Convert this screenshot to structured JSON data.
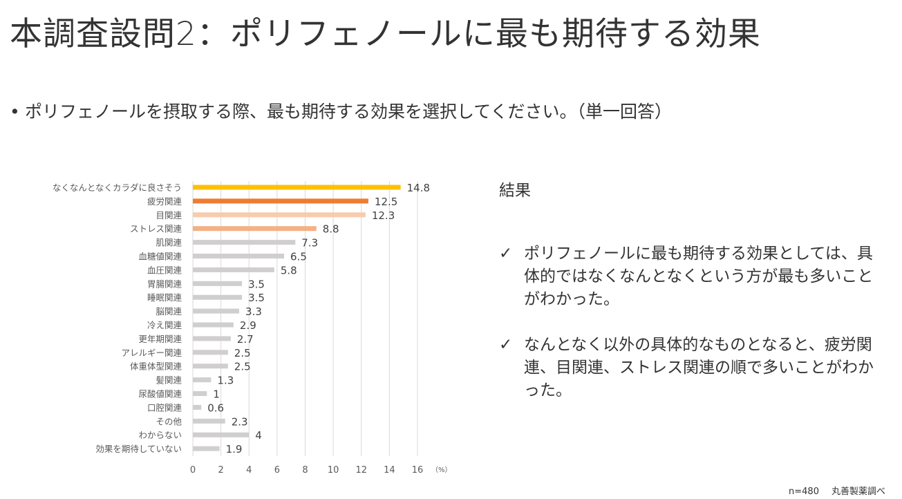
{
  "title": "本調査設問2：ポリフェノールに最も期待する効果",
  "question": "ポリフェノールを摂取する際、最も期待する効果を選択してください。（単一回答）",
  "results": {
    "heading": "結果",
    "check_icon": "check-icon",
    "items": [
      "ポリフェノールに最も期待する効果としては、具体的ではなくなんとなくという方が最も多いことがわかった。",
      "なんとなく以外の具体的なものとなると、疲労関連、目関連、ストレス関連の順で多いことがわかった。"
    ]
  },
  "footer": {
    "sample": "n=480",
    "source": "丸善製薬調べ"
  },
  "chart_data": {
    "type": "bar",
    "orientation": "horizontal",
    "categories": [
      "なくなんとなくカラダに良さそう",
      "疲労関連",
      "目関連",
      "ストレス関連",
      "肌関連",
      "血糖値関連",
      "血圧関連",
      "胃腸関連",
      "睡眠関連",
      "脳関連",
      "冷え関連",
      "更年期関連",
      "アレルギー関連",
      "体重体型関連",
      "髪関連",
      "尿酸値関連",
      "口腔関連",
      "その他",
      "わからない",
      "効果を期待していない"
    ],
    "values": [
      14.8,
      12.5,
      12.3,
      8.8,
      7.3,
      6.5,
      5.8,
      3.5,
      3.5,
      3.3,
      2.9,
      2.7,
      2.5,
      2.5,
      1.3,
      1,
      0.6,
      2.3,
      4,
      1.9
    ],
    "colors": [
      "#FFC000",
      "#ED7D31",
      "#F8CBAD",
      "#F4B183",
      "#D0CECE",
      "#D0CECE",
      "#D0CECE",
      "#D0CECE",
      "#D0CECE",
      "#D0CECE",
      "#D0CECE",
      "#D0CECE",
      "#D0CECE",
      "#D0CECE",
      "#D0CECE",
      "#D0CECE",
      "#D0CECE",
      "#D0CECE",
      "#D0CECE",
      "#D0CECE"
    ],
    "xlim": [
      0,
      16
    ],
    "xticks": [
      0,
      2,
      4,
      6,
      8,
      10,
      12,
      14,
      16
    ],
    "xunit": "（%）",
    "grid": true,
    "data_labels": true
  }
}
